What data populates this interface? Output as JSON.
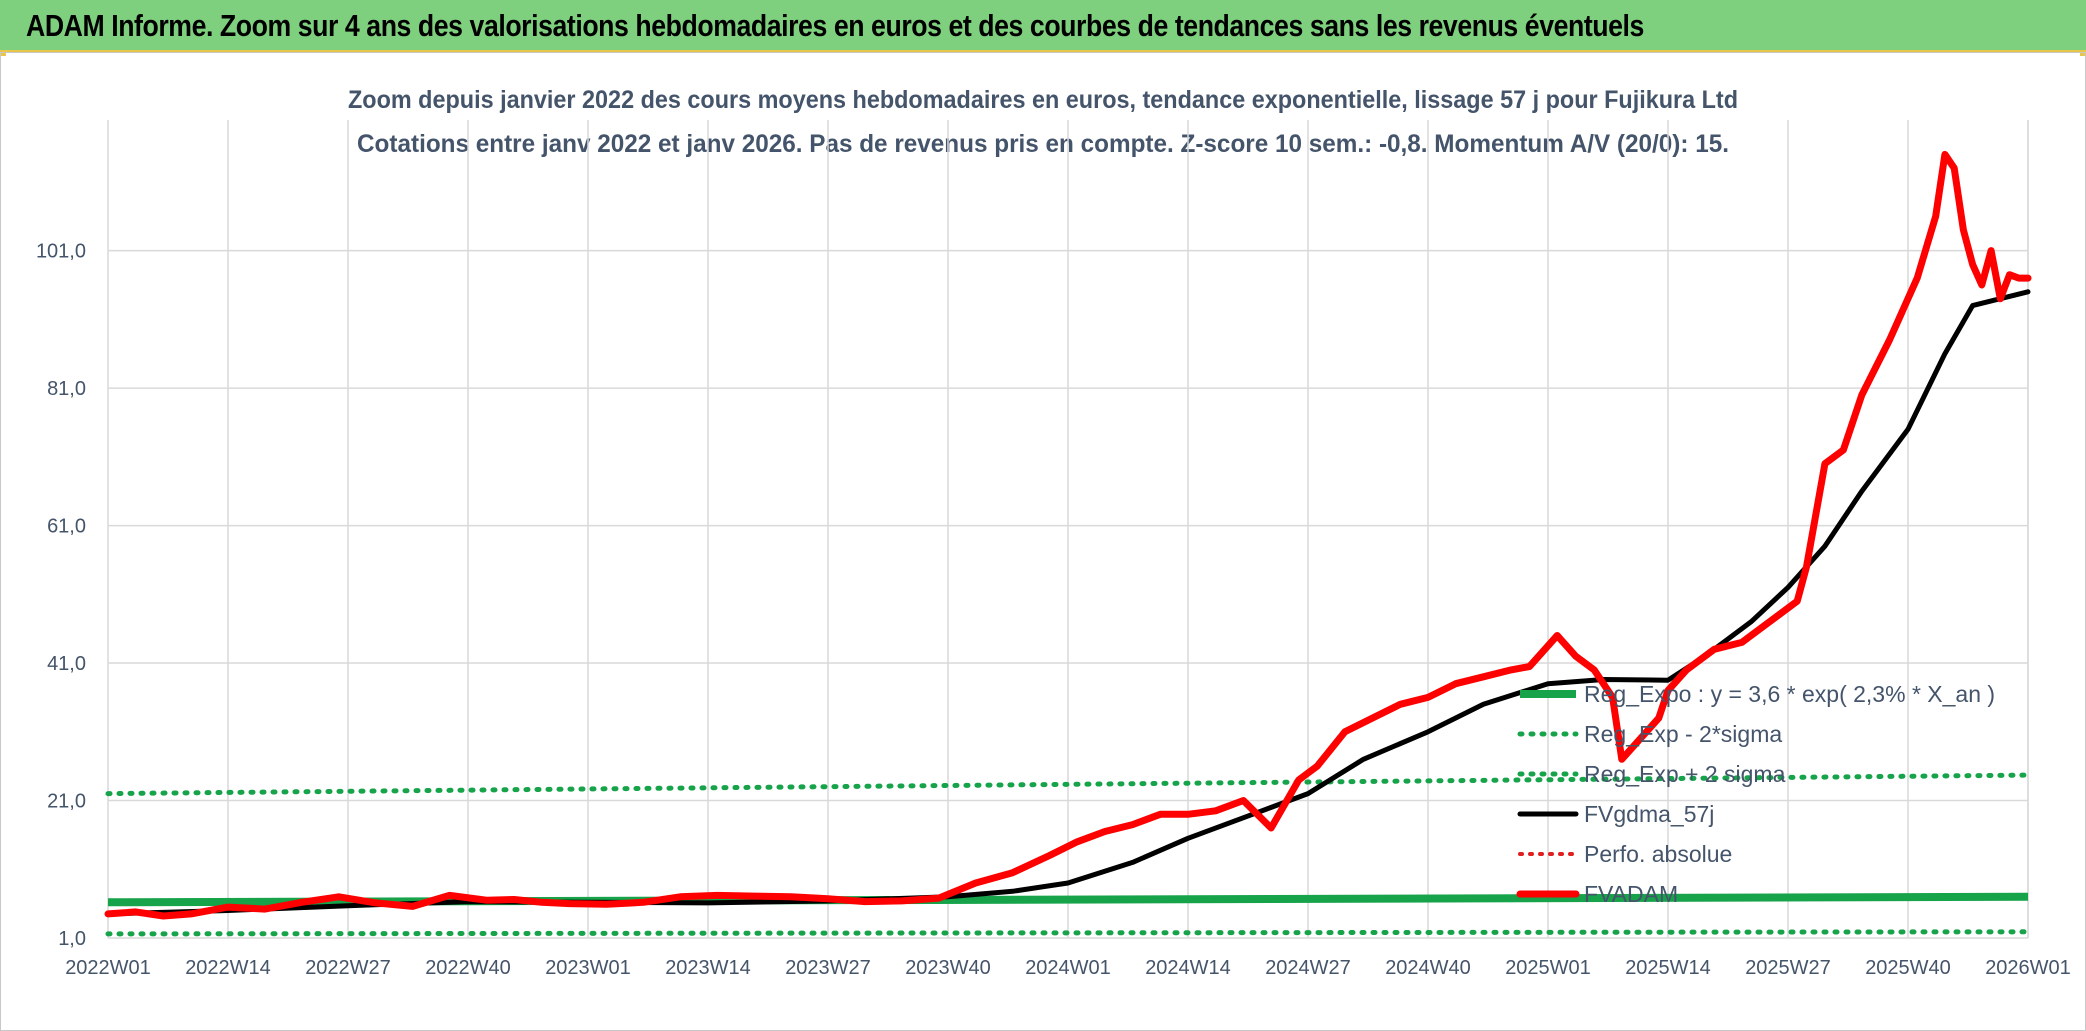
{
  "header": {
    "title": "ADAM Informe. Zoom sur 4 ans des valorisations hebdomadaires en euros et des courbes de tendances sans les revenus éventuels"
  },
  "chart_data": {
    "type": "line",
    "title_line1": "Zoom depuis janvier 2022 des cours moyens hebdomadaires en euros, tendance exponentielle, lissage 57 j pour Fujikura Ltd",
    "title_line2": "Cotations entre janv 2022 et janv 2026. Pas de revenus pris en compte. Z-score 10 sem.: -0,8. Momentum A/V (20/0): 15.",
    "xlabel": "",
    "ylabel": "",
    "ylim": [
      1,
      120
    ],
    "xlim": [
      0,
      208
    ],
    "y_ticks": [
      1,
      21,
      41,
      61,
      81,
      101
    ],
    "y_tick_labels": [
      "1,0",
      "21,0",
      "41,0",
      "61,0",
      "81,0",
      "101,0"
    ],
    "x_ticks": [
      0,
      13,
      26,
      39,
      52,
      65,
      78,
      91,
      104,
      117,
      130,
      143,
      156,
      169,
      182,
      195,
      208
    ],
    "x_tick_labels": [
      "2022W01",
      "2022W14",
      "2022W27",
      "2022W40",
      "2023W01",
      "2023W14",
      "2023W27",
      "2023W40",
      "2024W01",
      "2024W14",
      "2024W27",
      "2024W40",
      "2025W01",
      "2025W14",
      "2025W27",
      "2025W40",
      "2026W01"
    ],
    "grid": true,
    "legend_position": "center-right",
    "colors": {
      "reg_expo": "#16a34a",
      "reg_band": "#16a34a",
      "fvgdma": "#000000",
      "perfo": "#e02020",
      "fvadam": "#ff0000",
      "title": "#44546a",
      "axis_text": "#44546a",
      "grid": "#d9d9d9"
    },
    "series": [
      {
        "name": "Reg_Expo : y = 3,6 * exp( 2,3% *  X_an )",
        "style": "solid-thick",
        "x": [
          0,
          208
        ],
        "y": [
          6.2,
          7.0
        ]
      },
      {
        "name": "Reg_Exp - 2*sigma",
        "style": "dotted",
        "x": [
          0,
          208
        ],
        "y": [
          1.6,
          1.9
        ]
      },
      {
        "name": "Reg_Exp + 2 sigma",
        "style": "dotted",
        "x": [
          0,
          208
        ],
        "y": [
          22.0,
          24.7
        ]
      },
      {
        "name": "FVgdma_57j",
        "style": "solid",
        "x": [
          0,
          13,
          26,
          39,
          52,
          65,
          78,
          91,
          98,
          104,
          111,
          117,
          124,
          130,
          136,
          143,
          149,
          156,
          162,
          169,
          173,
          178,
          182,
          186,
          190,
          195,
          199,
          202,
          205,
          208
        ],
        "y": [
          4.5,
          5.0,
          5.7,
          6.3,
          6.2,
          6.1,
          6.4,
          7.0,
          7.8,
          9.0,
          12.0,
          15.5,
          19.0,
          22.0,
          27.0,
          31.0,
          35.0,
          38.0,
          38.6,
          38.5,
          42.0,
          47.0,
          52.0,
          58.0,
          66.0,
          75.0,
          86.0,
          93.0,
          94.0,
          95.0
        ]
      },
      {
        "name": "Perfo. absolue",
        "style": "dotted",
        "x": [],
        "y": []
      },
      {
        "name": "FVADAM",
        "style": "solid-thick",
        "x": [
          0,
          3,
          6,
          9,
          13,
          17,
          21,
          25,
          29,
          33,
          37,
          41,
          44,
          47,
          50,
          54,
          58,
          62,
          66,
          70,
          74,
          78,
          82,
          86,
          90,
          94,
          98,
          102,
          105,
          108,
          111,
          114,
          117,
          120,
          123,
          126,
          129,
          130,
          131,
          134,
          137,
          140,
          143,
          146,
          149,
          152,
          154,
          157,
          159,
          161,
          163,
          164,
          166,
          168,
          169,
          171,
          174,
          177,
          180,
          183,
          184,
          186,
          188,
          190,
          193,
          196,
          198,
          199,
          200,
          201,
          202,
          203,
          204,
          205,
          206,
          207,
          208
        ],
        "y": [
          4.5,
          4.8,
          4.2,
          4.5,
          5.5,
          5.2,
          6.2,
          7.0,
          6.1,
          5.6,
          7.2,
          6.5,
          6.6,
          6.2,
          6.0,
          5.9,
          6.2,
          7.0,
          7.2,
          7.1,
          7.0,
          6.7,
          6.3,
          6.4,
          6.8,
          9.0,
          10.5,
          13.0,
          15.0,
          16.5,
          17.5,
          19.0,
          19.0,
          19.5,
          21.0,
          17.0,
          24.0,
          25.0,
          26.0,
          31.0,
          33.0,
          35.0,
          36.0,
          38.0,
          39.0,
          40.0,
          40.5,
          45.0,
          42.0,
          40.0,
          36.0,
          27.0,
          30.0,
          33.0,
          37.0,
          40.0,
          43.0,
          44.0,
          47.0,
          50.0,
          55.0,
          70.0,
          72.0,
          80.0,
          88.0,
          97.0,
          106.0,
          115.0,
          113.0,
          104.0,
          99.0,
          96.0,
          101.0,
          94.0,
          97.5,
          97.0,
          97.0
        ]
      }
    ]
  }
}
